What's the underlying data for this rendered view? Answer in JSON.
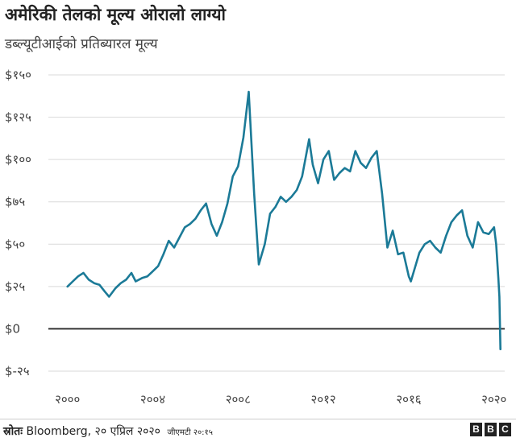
{
  "chart_data": {
    "type": "line",
    "title": "अमेरिकी तेलको मूल्य ओरालो लाग्यो",
    "subtitle": "डब्ल्यूटीआईको प्रतिब्यारल मूल्य",
    "xlabel": "",
    "ylabel": "",
    "ylim": [
      -25,
      150
    ],
    "xlim": [
      1998.5,
      2020.5
    ],
    "y_ticks": [
      150,
      125,
      100,
      75,
      50,
      25,
      0,
      -25
    ],
    "y_tick_labels": [
      "$१५०",
      "$१२५",
      "$१००",
      "$७५",
      "$५०",
      "$२५",
      "$0",
      "$-२५"
    ],
    "x_ticks": [
      2000,
      2004,
      2008,
      2012,
      2016,
      2020
    ],
    "x_tick_labels": [
      "२०००",
      "२००४",
      "२००८",
      "२०१२",
      "२०१६",
      "२०२०"
    ],
    "grid": true,
    "zero_line": true,
    "line_color": "#1b7a97",
    "series": [
      {
        "x": [
          2000.0,
          2000.25,
          2000.5,
          2000.75,
          2001.0,
          2001.25,
          2001.5,
          2001.75,
          2001.95,
          2002.25,
          2002.5,
          2002.75,
          2003.0,
          2003.2,
          2003.5,
          2003.75,
          2004.0,
          2004.25,
          2004.5,
          2004.75,
          2005.0,
          2005.25,
          2005.5,
          2005.75,
          2006.0,
          2006.25,
          2006.5,
          2006.75,
          2007.0,
          2007.25,
          2007.5,
          2007.75,
          2008.0,
          2008.25,
          2008.5,
          2008.75,
          2008.97,
          2009.25,
          2009.5,
          2009.75,
          2010.0,
          2010.25,
          2010.5,
          2010.75,
          2011.0,
          2011.33,
          2011.5,
          2011.75,
          2012.0,
          2012.25,
          2012.5,
          2012.75,
          2013.0,
          2013.25,
          2013.5,
          2013.75,
          2014.0,
          2014.25,
          2014.5,
          2014.75,
          2015.0,
          2015.25,
          2015.5,
          2015.75,
          2016.0,
          2016.1,
          2016.5,
          2016.75,
          2017.0,
          2017.25,
          2017.5,
          2017.75,
          2018.0,
          2018.25,
          2018.5,
          2018.75,
          2019.0,
          2019.25,
          2019.5,
          2019.75,
          2020.0,
          2020.1,
          2020.2,
          2020.25,
          2020.3
        ],
        "y": [
          25,
          28,
          31,
          33,
          29,
          27,
          26,
          22,
          19,
          24,
          27,
          29,
          33,
          28,
          30,
          31,
          34,
          37,
          44,
          52,
          48,
          54,
          60,
          62,
          65,
          70,
          74,
          62,
          55,
          63,
          74,
          90,
          96,
          113,
          140,
          80,
          38,
          50,
          68,
          72,
          78,
          75,
          78,
          82,
          90,
          112,
          97,
          86,
          100,
          105,
          88,
          92,
          95,
          93,
          105,
          98,
          95,
          101,
          105,
          80,
          48,
          58,
          44,
          45,
          31,
          28,
          45,
          50,
          52,
          48,
          45,
          55,
          63,
          67,
          70,
          55,
          48,
          63,
          57,
          56,
          60,
          50,
          30,
          19,
          -12
        ]
      }
    ]
  },
  "footer": {
    "source_label": "स्रोतः",
    "source_text": "Bloomberg, २० एप्रिल २०२०",
    "stamp": "जीएमटी २०:१५",
    "logo_letters": [
      "B",
      "B",
      "C"
    ]
  }
}
